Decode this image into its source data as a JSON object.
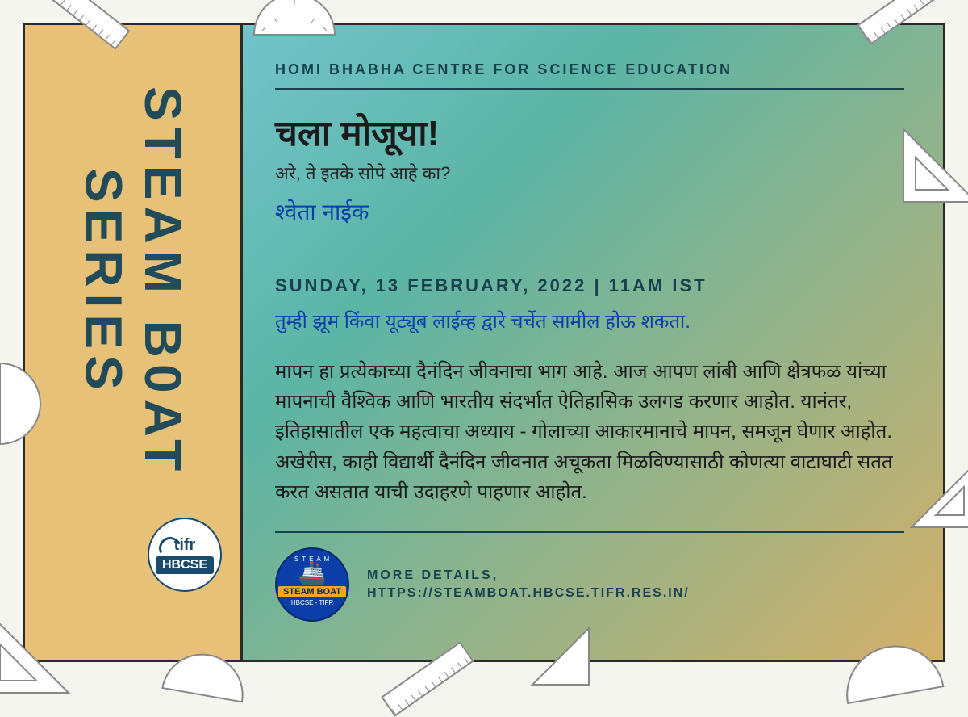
{
  "side": {
    "title": "STEAM B0AT\nSERIES"
  },
  "hbcse_badge": {
    "tifr": "tifr",
    "hbcse": "HBCSE"
  },
  "content": {
    "org": "HOMI BHABHA CENTRE FOR SCIENCE EDUCATION",
    "title": "चला मोजूया!",
    "subtitle": "अरे, ते इतके सोपे आहे का?",
    "speaker": "श्वेता नाईक",
    "datetime": "SUNDAY, 13 FEBRUARY, 2022 | 11AM IST",
    "join_line": "तुम्ही झूम किंवा यूट्यूब लाईव्ह द्वारे चर्चेत सामील होऊ शकता.",
    "body": "मापन हा प्रत्येकाच्या दैनंदिन जीवनाचा भाग आहे. आज आपण लांबी आणि क्षेत्रफळ यांच्या मापनाची वैश्विक आणि भारतीय संदर्भात ऐतिहासिक उलगड करणार आहोत. यानंतर, इतिहासातील एक महत्वाचा अध्याय - गोलाच्या आकारमानाचे मापन, समजून घेणार आहोत. अखेरीस, काही विद्यार्थी दैनंदिन जीवनात अचूकता मिळविण्यासाठी कोणत्या वाटाघाटी सतत करत असतात याची उदाहरणे पाहणार आहोत."
  },
  "footer": {
    "steam_arc": "S T E A M",
    "steam_label": "STEAM BOAT",
    "steam_sub": "HBCSE - TIFR",
    "more_label": "MORE DETAILS,",
    "url": "HTTPS://STEAMBOAT.HBCSE.TIFR.RES.IN/"
  },
  "colors": {
    "frame": "#2a2a2a",
    "side_bg": "#e8c178",
    "grad_a": "#7fcce0",
    "grad_b": "#5bb5a5",
    "grad_c": "#d4b06a",
    "accent_dark": "#17424d",
    "accent_blue": "#0b3ea8",
    "text": "#1b1b1b"
  }
}
